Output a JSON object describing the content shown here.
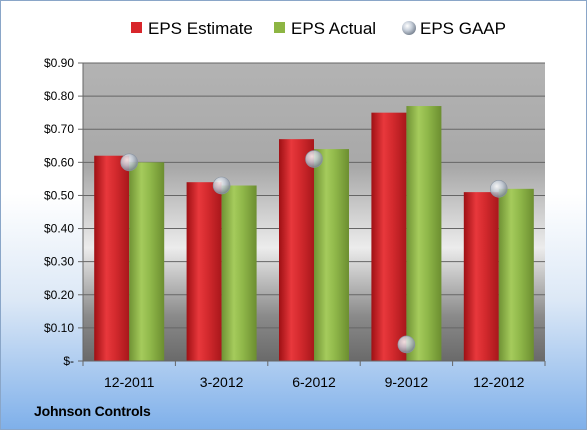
{
  "chart_data": {
    "type": "bar",
    "categories": [
      "12-2011",
      "3-2012",
      "6-2012",
      "9-2012",
      "12-2012"
    ],
    "series": [
      {
        "name": "EPS Estimate",
        "type": "bar",
        "values": [
          0.62,
          0.54,
          0.67,
          0.75,
          0.51
        ],
        "color": "#d8262b"
      },
      {
        "name": "EPS Actual",
        "type": "bar",
        "values": [
          0.6,
          0.53,
          0.64,
          0.77,
          0.52
        ],
        "color": "#8db543"
      },
      {
        "name": "EPS GAAP",
        "type": "scatter",
        "values": [
          0.6,
          0.53,
          0.61,
          0.05,
          0.52
        ],
        "color": "#b9c4d2"
      }
    ],
    "ylim": [
      0,
      0.9
    ],
    "yticks": [
      {
        "value": 0.9,
        "label": "$0.90"
      },
      {
        "value": 0.8,
        "label": "$0.80"
      },
      {
        "value": 0.7,
        "label": "$0.70"
      },
      {
        "value": 0.6,
        "label": "$0.60"
      },
      {
        "value": 0.5,
        "label": "$0.50"
      },
      {
        "value": 0.4,
        "label": "$0.40"
      },
      {
        "value": 0.3,
        "label": "$0.30"
      },
      {
        "value": 0.2,
        "label": "$0.20"
      },
      {
        "value": 0.1,
        "label": "$0.10"
      },
      {
        "value": 0,
        "label": "$-"
      }
    ],
    "grid": true,
    "legend": "top"
  },
  "footer": {
    "company": "Johnson Controls"
  }
}
